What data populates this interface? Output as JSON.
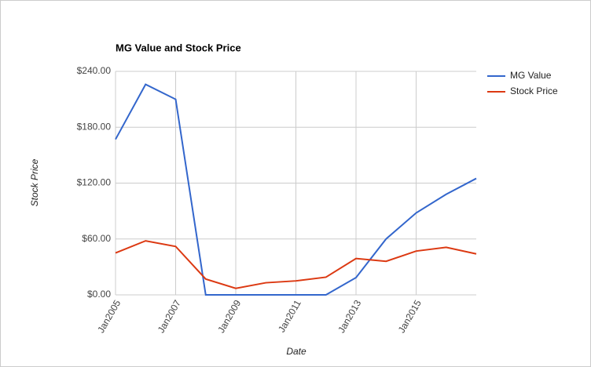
{
  "chart_data": {
    "type": "line",
    "title": "MG Value and Stock Price",
    "x_label": "Date",
    "y_label": "Stock Price",
    "x": [
      2005,
      2006,
      2007,
      2008,
      2009,
      2010,
      2011,
      2012,
      2013,
      2014,
      2015,
      2016,
      2017
    ],
    "series": [
      {
        "name": "MG Value",
        "color": "#3366cc",
        "values": [
          167,
          226,
          210,
          0,
          0,
          0,
          0,
          0,
          18.5,
          60,
          88,
          108,
          125
        ]
      },
      {
        "name": "Stock Price",
        "color": "#dc3912",
        "values": [
          45,
          58,
          52,
          17,
          7,
          13,
          15,
          19,
          39,
          36,
          47,
          51,
          44
        ]
      }
    ],
    "xlim": [
      2005,
      2017
    ],
    "xticks": [
      {
        "value": 2005,
        "label": "Jan2005"
      },
      {
        "value": 2007,
        "label": "Jan2007"
      },
      {
        "value": 2009,
        "label": "Jan2009"
      },
      {
        "value": 2011,
        "label": "Jan2011"
      },
      {
        "value": 2013,
        "label": "Jan2013"
      },
      {
        "value": 2015,
        "label": "Jan2015"
      }
    ],
    "ylim": [
      0,
      240
    ],
    "yticks": [
      {
        "value": 0,
        "label": "$0.00"
      },
      {
        "value": 60,
        "label": "$60.00"
      },
      {
        "value": 120,
        "label": "$120.00"
      },
      {
        "value": 180,
        "label": "$180.00"
      },
      {
        "value": 240,
        "label": "$240.00"
      }
    ],
    "grid": true,
    "legend": "right"
  }
}
